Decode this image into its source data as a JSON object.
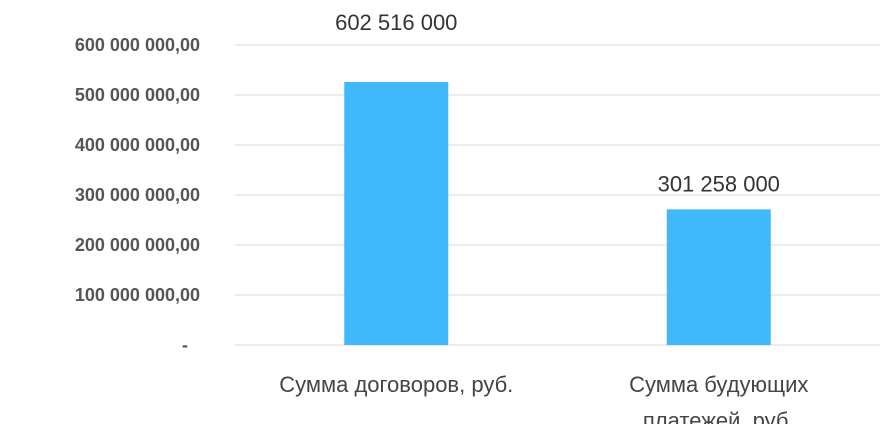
{
  "chart_data": {
    "type": "bar",
    "title": "",
    "xlabel": "",
    "ylabel": "",
    "categories": [
      [
        "Сумма договоров, руб."
      ],
      [
        "Сумма будующих",
        "платежей, руб."
      ]
    ],
    "values": [
      602516000,
      301258000
    ],
    "data_labels": [
      "602 516 000",
      "301 258  000"
    ],
    "ylim": [
      0,
      600000000
    ],
    "yticks": [
      0,
      100000000,
      200000000,
      300000000,
      400000000,
      500000000,
      600000000
    ],
    "ytick_labels": [
      "-",
      "100 000 000,00",
      "200 000 000,00",
      "300 000 000,00",
      "400 000 000,00",
      "500 000 000,00",
      "600 000 000,00"
    ],
    "grid": true,
    "legend": "none",
    "colors": {
      "bar": "#40b8fb",
      "grid": "#d9d9d9",
      "tick_text": "#555555",
      "label_text": "#333333"
    }
  }
}
